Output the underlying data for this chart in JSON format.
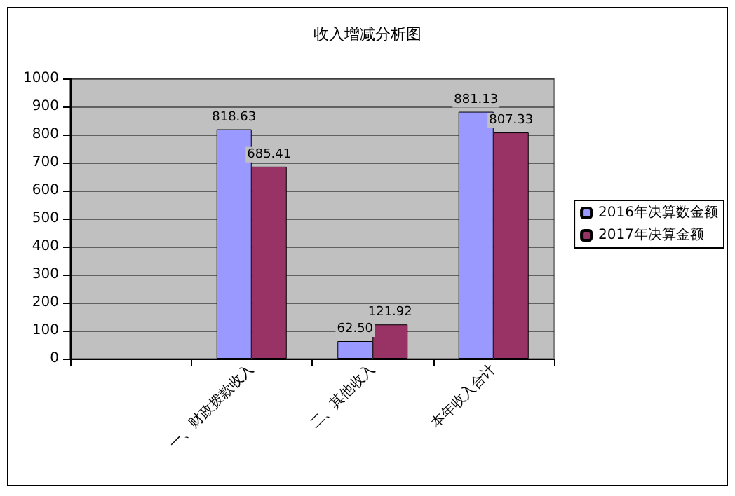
{
  "chart_data": {
    "type": "bar",
    "title": "收入增减分析图",
    "categories": [
      null,
      "一、财政拨款收入",
      "二、其他收入",
      "本年收入合计"
    ],
    "series": [
      {
        "name": "2016年决算数金额",
        "color": "#9999ff",
        "values": [
          null,
          818.63,
          62.5,
          881.13
        ],
        "value_labels": [
          null,
          "818.63",
          "62.50",
          "881.13"
        ]
      },
      {
        "name": "2017年决算金额",
        "color": "#993366",
        "values": [
          null,
          685.41,
          121.92,
          807.33
        ],
        "value_labels": [
          null,
          "685.41",
          "121.92",
          "807.33"
        ]
      }
    ],
    "ylim": [
      0,
      1000
    ],
    "yticks": [
      0,
      100,
      200,
      300,
      400,
      500,
      600,
      700,
      800,
      900,
      1000
    ],
    "grid": "y",
    "legend": "right"
  }
}
